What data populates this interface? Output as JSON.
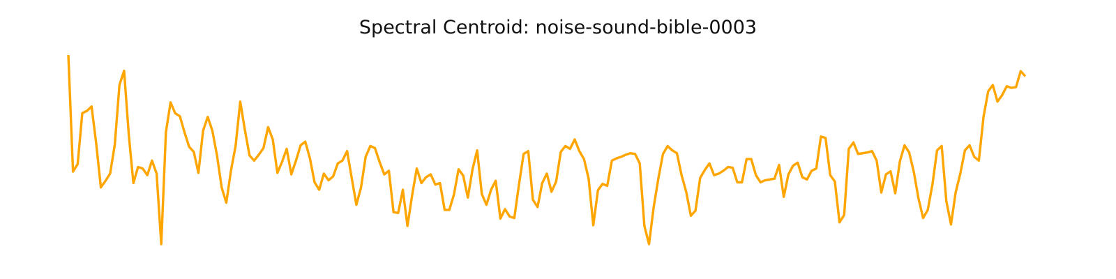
{
  "chart_data": {
    "type": "line",
    "title": "Spectral Centroid: noise-sound-bible-0003",
    "xlabel": "",
    "ylabel": "",
    "axes_visible": false,
    "grid": false,
    "legend": "none",
    "ylim": [
      0,
      100
    ],
    "line_color": "#FFA500",
    "values": [
      100,
      38.4,
      42.3,
      69.3,
      70.5,
      72.8,
      53.1,
      30.0,
      33.5,
      37.4,
      52.7,
      84.2,
      91.7,
      58.2,
      32.3,
      40.8,
      40.0,
      36.5,
      44.2,
      37.3,
      0,
      59.2,
      75.0,
      69.2,
      67.7,
      59.2,
      51.5,
      48.8,
      37.7,
      60.0,
      67.3,
      60.0,
      46.9,
      30.0,
      21.9,
      38.8,
      51.9,
      75.4,
      60.4,
      46.9,
      44.2,
      47.3,
      50.8,
      61.9,
      55.4,
      37.7,
      43.5,
      50.4,
      36.9,
      44.2,
      52.3,
      54.2,
      45.4,
      32.7,
      28.8,
      37.3,
      33.8,
      35.8,
      42.7,
      44.2,
      49.2,
      35.0,
      20.8,
      30.0,
      46.2,
      51.9,
      50.8,
      43.5,
      36.9,
      38.8,
      16.9,
      16.5,
      28.8,
      9.6,
      25.8,
      40.0,
      32.3,
      35.4,
      36.9,
      31.5,
      32.3,
      18.1,
      18.1,
      26.2,
      39.6,
      36.2,
      24.6,
      39.6,
      49.6,
      26.5,
      20.8,
      28.8,
      33.5,
      13.5,
      18.5,
      14.6,
      13.8,
      31.5,
      47.7,
      49.2,
      23.5,
      19.6,
      32.3,
      37.3,
      27.7,
      33.1,
      48.8,
      51.9,
      50.4,
      55.4,
      49.2,
      45.0,
      34.6,
      10.0,
      28.5,
      31.9,
      30.8,
      44.2,
      45.4,
      46.2,
      47.3,
      48.1,
      47.7,
      42.7,
      9.6,
      0,
      19.6,
      34.6,
      47.7,
      51.9,
      49.6,
      48.1,
      36.5,
      27.7,
      15.0,
      17.7,
      35.0,
      39.2,
      42.7,
      36.5,
      37.3,
      38.8,
      40.8,
      40.4,
      32.7,
      32.7,
      45.0,
      45.0,
      36.5,
      32.7,
      33.8,
      34.2,
      34.6,
      41.9,
      25.0,
      36.9,
      41.5,
      43.1,
      35.4,
      34.2,
      38.8,
      40.0,
      56.9,
      56.2,
      36.5,
      33.1,
      11.5,
      15.4,
      50.4,
      53.8,
      47.7,
      48.1,
      48.5,
      49.2,
      44.2,
      27.3,
      36.9,
      38.5,
      26.9,
      43.8,
      52.3,
      48.5,
      38.1,
      24.2,
      13.8,
      18.1,
      31.5,
      49.6,
      51.9,
      22.7,
      10.4,
      27.3,
      37.3,
      49.6,
      52.3,
      46.2,
      44.2,
      67.3,
      80.8,
      84.2,
      75.4,
      78.8,
      83.5,
      82.7,
      83.1,
      91.5,
      88.8
    ]
  }
}
